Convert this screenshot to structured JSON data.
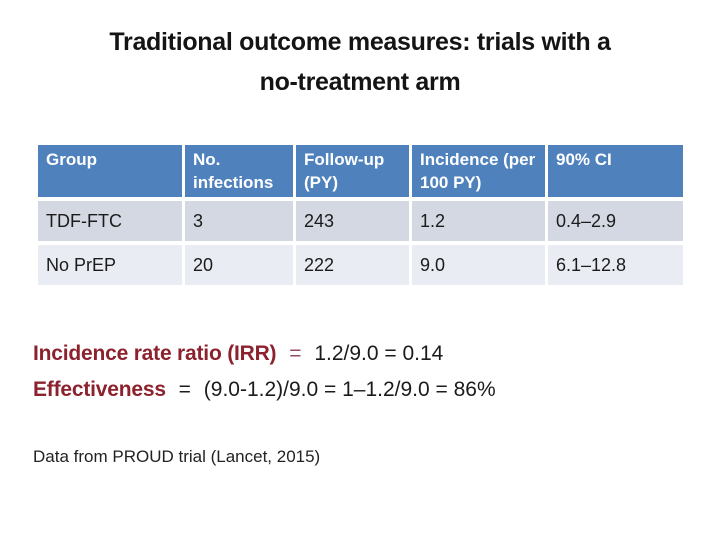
{
  "title": {
    "line1": "Traditional outcome measures: trials with a",
    "line2": "no-treatment arm"
  },
  "table": {
    "headers": [
      "Group",
      "No. infections",
      "Follow-up (PY)",
      "Incidence (per 100 PY)",
      "90% CI"
    ],
    "rows": [
      [
        "TDF-FTC",
        "3",
        "243",
        "1.2",
        "0.4–2.9"
      ],
      [
        "No PrEP",
        "20",
        "222",
        "9.0",
        "6.1–12.8"
      ]
    ]
  },
  "analysis": {
    "irr": {
      "label": "Incidence rate ratio (IRR)",
      "operator": "=",
      "expression": "1.2/9.0 = 0.14"
    },
    "effectiveness": {
      "label": "Effectiveness",
      "operator": "=",
      "expression": "(9.0-1.2)/9.0 = 1–1.2/9.0 = 86%"
    }
  },
  "footnote": "Data from PROUD trial (Lancet, 2015)",
  "colors": {
    "header_bg": "#4f81bd",
    "row_band_dark": "#d3d8e3",
    "row_band_light": "#e9ecf2",
    "accent_maroon": "#8c222e",
    "operator_plum": "#8e4d68",
    "text": "#1b1b1b"
  }
}
